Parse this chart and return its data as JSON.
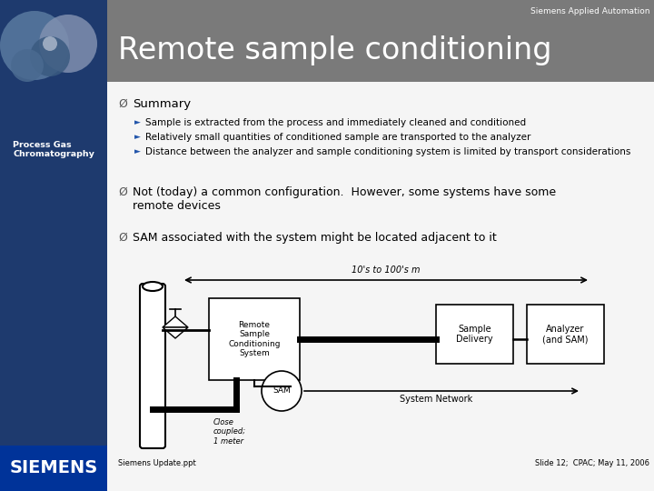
{
  "title": "Remote sample conditioning",
  "siemens_brand": "Siemens Applied Automation",
  "sidebar_title": "Process Gas\nChromatography",
  "sidebar_bg": "#1a3a6b",
  "header_bg": "#7a7a7a",
  "title_color": "#ffffff",
  "slide_bg": "#f0f0f0",
  "footer_left": "Siemens Update.ppt",
  "footer_right": "Slide 12;  CPAC; May 11, 2006",
  "siemens_blue": "#003087",
  "bullet_sub": [
    "Sample is extracted from the process and immediately cleaned and conditioned",
    "Relatively small quantities of conditioned sample are transported to the analyzer",
    "Distance between the analyzer and sample conditioning system is limited by transport considerations"
  ],
  "diagram_label_arrow": "10's to 100's m",
  "box1_label": "Remote\nSample\nConditioning\nSystem",
  "box2_label": "Sample\nDelivery",
  "box3_label": "Analyzer\n(and SAM)",
  "circle_label": "SAM",
  "network_label": "System Network",
  "close_label": "Close\ncoupled;\n1 meter"
}
